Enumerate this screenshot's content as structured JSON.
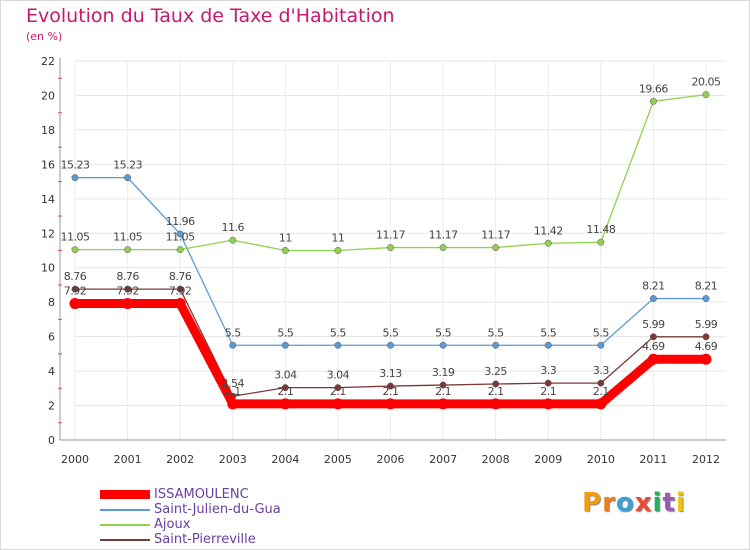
{
  "header": {
    "title": "Evolution du Taux de Taxe d'Habitation",
    "subtitle": "(en %)"
  },
  "logo": {
    "letters": [
      "P",
      "r",
      "o",
      "x",
      "i",
      "t",
      "i"
    ],
    "colors": [
      "#f39c12",
      "#e67e22",
      "#3aa0d8",
      "#e74c3c",
      "#27ae60",
      "#9b59b6",
      "#f1c40f"
    ]
  },
  "chart_data": {
    "type": "line",
    "categories": [
      "2000",
      "2001",
      "2002",
      "2003",
      "2004",
      "2005",
      "2006",
      "2007",
      "2008",
      "2009",
      "2010",
      "2011",
      "2012"
    ],
    "ylim": [
      0,
      22
    ],
    "yticks": [
      0,
      2,
      4,
      6,
      8,
      10,
      12,
      14,
      16,
      18,
      20,
      22
    ],
    "grid": true,
    "legend_position": "bottom-left",
    "series": [
      {
        "name": "ISSAMOULENC",
        "color": "#ff0000",
        "values": [
          7.92,
          7.92,
          7.92,
          2.1,
          2.1,
          2.1,
          2.1,
          2.1,
          2.1,
          2.1,
          2.1,
          4.69,
          4.69
        ],
        "labels": [
          "7.92",
          "7.92",
          "7.92",
          "2.1",
          "2.1",
          "2.1",
          "2.1",
          "2.1",
          "2.1",
          "2.1",
          "2.1",
          "4.69",
          "4.69"
        ]
      },
      {
        "name": "Saint-Julien-du-Gua",
        "color": "#5b9bd5",
        "values": [
          15.23,
          15.23,
          11.96,
          5.5,
          5.5,
          5.5,
          5.5,
          5.5,
          5.5,
          5.5,
          5.5,
          8.21,
          8.21
        ],
        "labels": [
          "15.23",
          "15.23",
          "11.96",
          "5.5",
          "5.5",
          "5.5",
          "5.5",
          "5.5",
          "5.5",
          "5.5",
          "5.5",
          "8.21",
          "8.21"
        ]
      },
      {
        "name": "Ajoux",
        "color": "#92d050",
        "values": [
          11.05,
          11.05,
          11.05,
          11.6,
          11,
          11,
          11.17,
          11.17,
          11.17,
          11.42,
          11.48,
          19.66,
          20.05
        ],
        "labels": [
          "11.05",
          "11.05",
          "11.05",
          "11.6",
          "11",
          "11",
          "11.17",
          "11.17",
          "11.17",
          "11.42",
          "11.48",
          "19.66",
          "20.05"
        ]
      },
      {
        "name": "Saint-Pierreville",
        "color": "#7b3a3a",
        "values": [
          8.76,
          8.76,
          8.76,
          2.54,
          3.04,
          3.04,
          3.13,
          3.19,
          3.25,
          3.3,
          3.3,
          5.99,
          5.99
        ],
        "labels": [
          "8.76",
          "8.76",
          "8.76",
          "2.54",
          "3.04",
          "3.04",
          "3.13",
          "3.19",
          "3.25",
          "3.3",
          "3.3",
          "5.99",
          "5.99"
        ]
      }
    ]
  }
}
